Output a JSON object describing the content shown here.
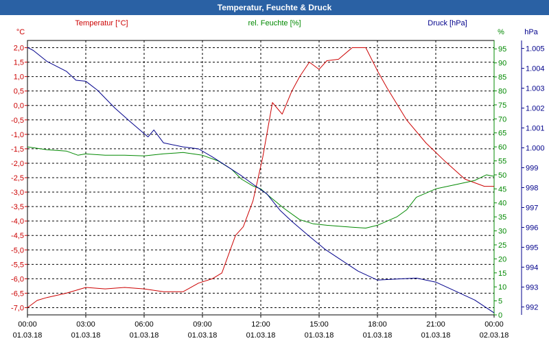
{
  "window": {
    "title": "Temperatur, Feuchte & Druck"
  },
  "colors": {
    "temperature": "#cc0000",
    "humidity": "#008800",
    "pressure": "#00008b",
    "grid": "#000000",
    "background": "#ffffff",
    "titlebar": "#2a61a4"
  },
  "chart_data": {
    "type": "line",
    "title": "Temperatur, Feuchte & Druck",
    "grid": true,
    "x": {
      "range_hours": [
        0,
        24
      ],
      "ticks": [
        {
          "time": "00:00",
          "date": "01.03.18"
        },
        {
          "time": "03:00",
          "date": "01.03.18"
        },
        {
          "time": "06:00",
          "date": "01.03.18"
        },
        {
          "time": "09:00",
          "date": "01.03.18"
        },
        {
          "time": "12:00",
          "date": "01.03.18"
        },
        {
          "time": "15:00",
          "date": "01.03.18"
        },
        {
          "time": "18:00",
          "date": "01.03.18"
        },
        {
          "time": "21:00",
          "date": "01.03.18"
        },
        {
          "time": "00:00",
          "date": "02.03.18"
        }
      ]
    },
    "axes": {
      "temperature": {
        "label": "Temperatur [°C]",
        "unit": "°C",
        "ylim": [
          -7.25,
          2.25
        ],
        "ticks": [
          "2,0",
          "1,5",
          "1,0",
          "0,5",
          "0,0",
          "-0,5",
          "-1,0",
          "-1,5",
          "-2,0",
          "-2,5",
          "-3,0",
          "-3,5",
          "-4,0",
          "-4,5",
          "-5,0",
          "-5,5",
          "-6,0",
          "-6,5",
          "-7,0"
        ]
      },
      "humidity": {
        "label": "rel. Feuchte [%]",
        "unit": "%",
        "ylim": [
          0,
          98
        ],
        "ticks": [
          "95",
          "90",
          "85",
          "80",
          "75",
          "70",
          "65",
          "60",
          "55",
          "50",
          "45",
          "40",
          "35",
          "30",
          "25",
          "20",
          "15",
          "10",
          "5",
          "0"
        ]
      },
      "pressure": {
        "label": "Druck [hPa]",
        "unit": "hPa",
        "ylim": [
          991.6,
          1005.4
        ],
        "ticks": [
          "1.005",
          "1.004",
          "1.003",
          "1.002",
          "1.001",
          "1.000",
          "999",
          "998",
          "997",
          "996",
          "995",
          "994",
          "993",
          "992"
        ]
      }
    },
    "series": [
      {
        "name": "Temperatur [°C]",
        "axis": "temperature",
        "x": [
          0,
          0.5,
          1,
          2,
          3,
          4,
          5,
          6,
          7,
          8,
          8.8,
          9.5,
          10,
          10.7,
          11.1,
          11.6,
          12.1,
          12.6,
          13.1,
          13.6,
          14,
          14.5,
          15,
          15.4,
          16,
          16.7,
          17.4,
          18,
          18.5,
          19.5,
          20.5,
          21.5,
          22.5,
          23.5,
          24
        ],
        "values": [
          -7.0,
          -6.75,
          -6.65,
          -6.5,
          -6.3,
          -6.35,
          -6.3,
          -6.35,
          -6.45,
          -6.45,
          -6.15,
          -6.0,
          -5.8,
          -4.5,
          -4.2,
          -3.3,
          -1.8,
          0.1,
          -0.3,
          0.5,
          1.0,
          1.5,
          1.25,
          1.55,
          1.6,
          2.0,
          2.0,
          1.2,
          0.6,
          -0.5,
          -1.3,
          -1.95,
          -2.55,
          -2.8,
          -2.8
        ]
      },
      {
        "name": "rel. Feuchte [%]",
        "axis": "humidity",
        "x": [
          0,
          1,
          2,
          2.6,
          3,
          4,
          5,
          6,
          7,
          8,
          9,
          9.8,
          10.5,
          11,
          11.6,
          12,
          12.5,
          13.2,
          14,
          14.7,
          15.4,
          16.3,
          17.4,
          18,
          19,
          19.5,
          20,
          21,
          22,
          23,
          23.6,
          24
        ],
        "values": [
          60,
          59,
          58.5,
          57,
          57.5,
          57,
          57,
          56.8,
          57.5,
          58,
          57,
          55,
          52,
          48.5,
          46,
          45,
          42,
          38,
          34,
          32.5,
          32,
          31.5,
          31,
          32,
          35,
          37.5,
          42,
          45,
          46.5,
          48,
          50,
          49.5
        ]
      },
      {
        "name": "Druck [hPa]",
        "axis": "pressure",
        "x": [
          0,
          0.3,
          1,
          2,
          2.5,
          3,
          3.6,
          4.5,
          5.3,
          6.2,
          6.5,
          7,
          8,
          8.8,
          9.5,
          10.3,
          11,
          11.7,
          12.3,
          13,
          13.6,
          14.5,
          15.3,
          16,
          17,
          18,
          19,
          20,
          21,
          22,
          23,
          24
        ],
        "values": [
          1005.05,
          1004.9,
          1004.35,
          1003.85,
          1003.4,
          1003.35,
          1002.9,
          1002.0,
          1001.3,
          1000.55,
          1000.9,
          1000.25,
          1000.05,
          999.95,
          999.55,
          999.05,
          998.6,
          998.1,
          997.7,
          996.85,
          996.3,
          995.55,
          994.9,
          994.45,
          993.8,
          993.35,
          993.4,
          993.45,
          993.25,
          992.8,
          992.35,
          991.7
        ]
      }
    ]
  }
}
